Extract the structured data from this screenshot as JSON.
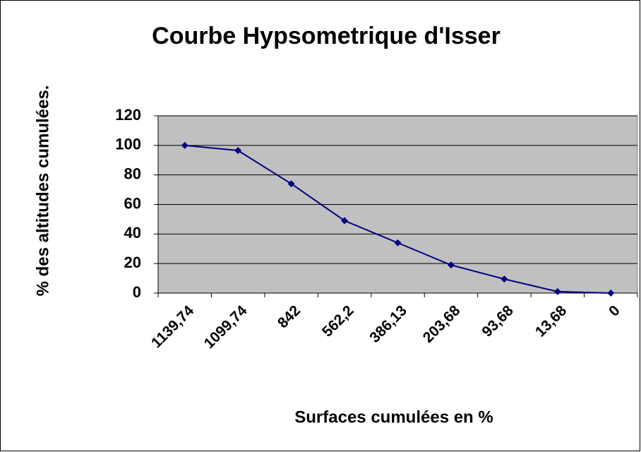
{
  "chart_data": {
    "type": "line",
    "title": "Courbe Hypsometrique  d'Isser",
    "x_label": "Surfaces cumulées en %",
    "y_label": "% des altitudes cumulées.",
    "categories": [
      "1139,74",
      "1099,74",
      "842",
      "562,2",
      "386,13",
      "203,68",
      "93,68",
      "13,68",
      "0"
    ],
    "values": [
      100,
      96.5,
      74,
      49,
      34,
      19,
      9.5,
      1,
      0
    ],
    "color": "#000080",
    "ylim": [
      0,
      120
    ],
    "yticks": [
      0,
      20,
      40,
      60,
      80,
      100,
      120
    ],
    "grid": true
  }
}
